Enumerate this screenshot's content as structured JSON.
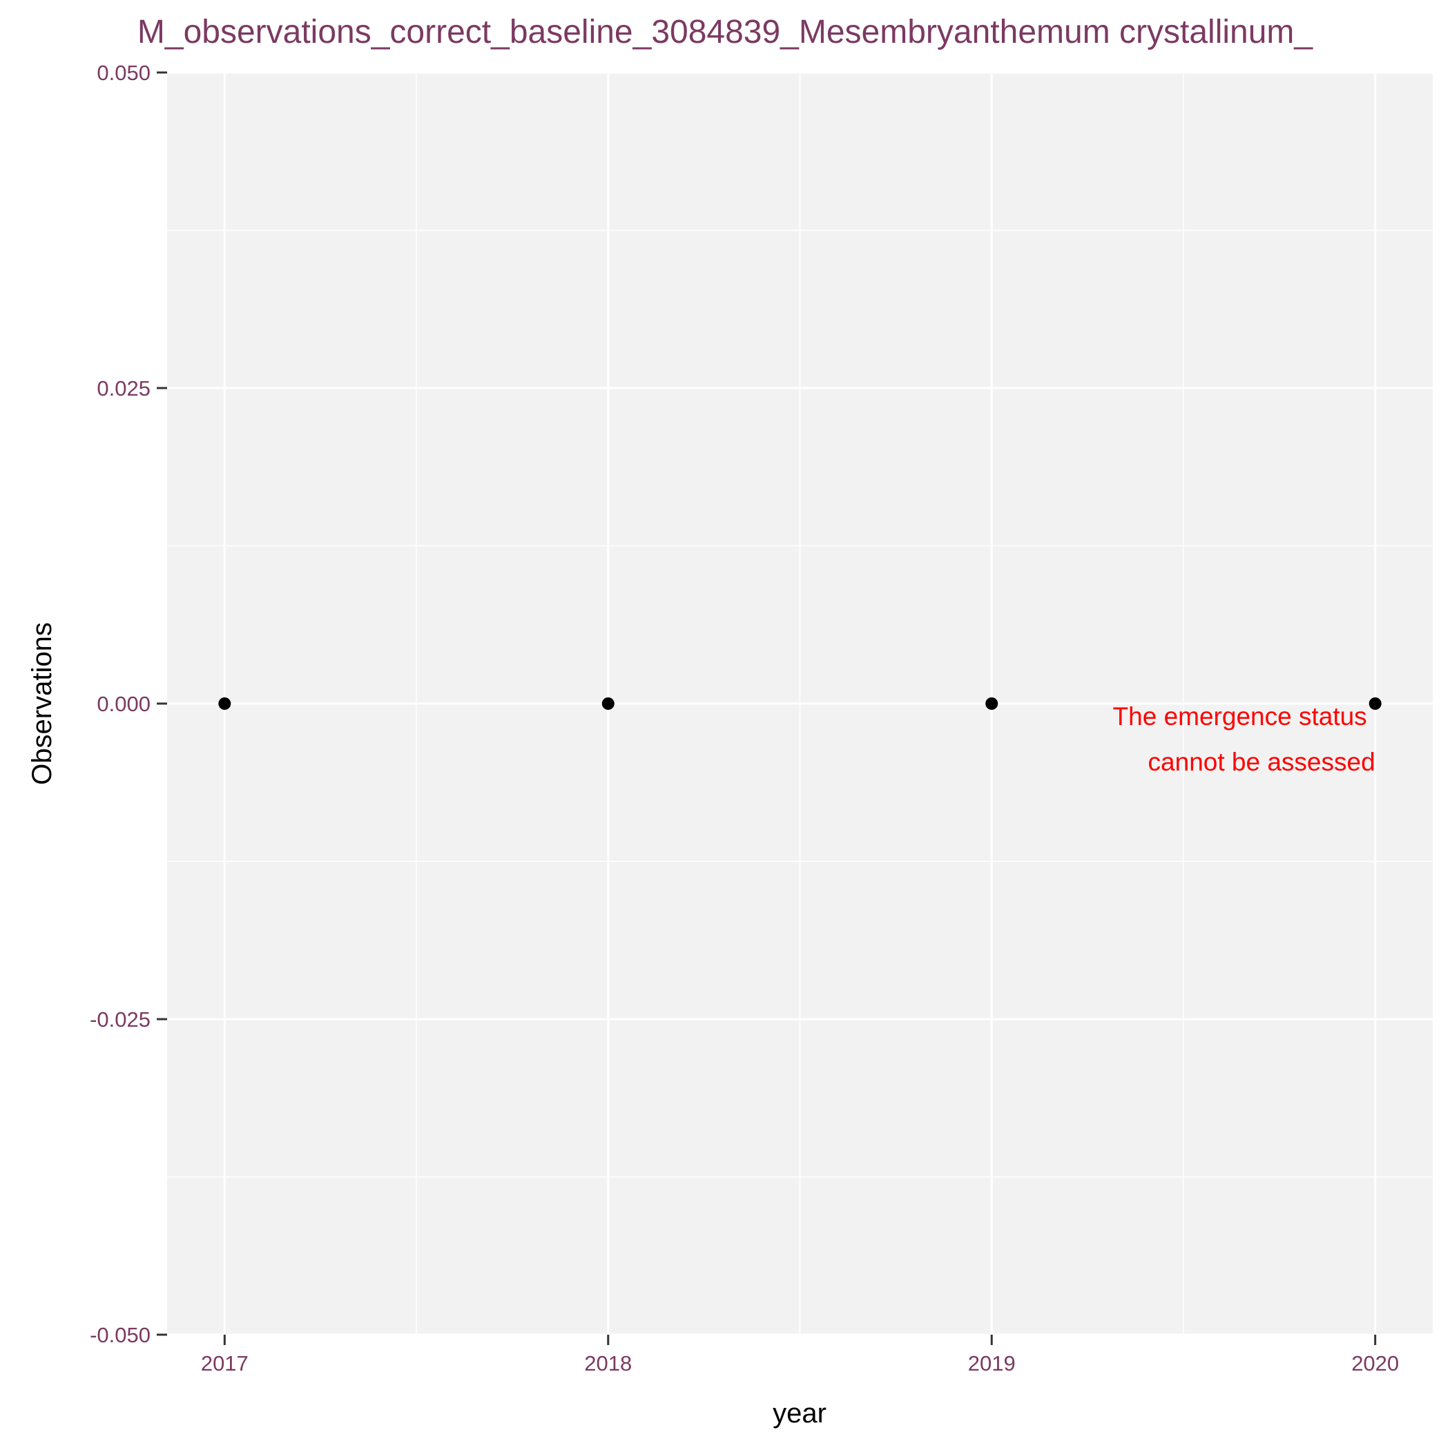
{
  "chart_data": {
    "type": "scatter",
    "title": "M_observations_correct_baseline_3084839_Mesembryanthemum crystallinum_",
    "xlabel": "year",
    "ylabel": "Observations",
    "x": [
      2017,
      2018,
      2019,
      2020
    ],
    "y": [
      0,
      0,
      0,
      0
    ],
    "xlim": [
      2016.85,
      2020.15
    ],
    "ylim": [
      -0.05,
      0.05
    ],
    "x_ticks": [
      "2017",
      "2018",
      "2019",
      "2020"
    ],
    "y_ticks": [
      "-0.050",
      "-0.025",
      "0.000",
      "0.025",
      "0.050"
    ],
    "annotation": {
      "lines": [
        "The emergence status",
        "cannot be assessed"
      ],
      "x": 2020,
      "y": 0,
      "color": "#ff0000"
    },
    "grid": true,
    "legend": "none",
    "colors": {
      "panel": "#f2f2f2",
      "grid": "#ffffff",
      "points": "#000000",
      "ticks": "#7b3a62"
    }
  }
}
